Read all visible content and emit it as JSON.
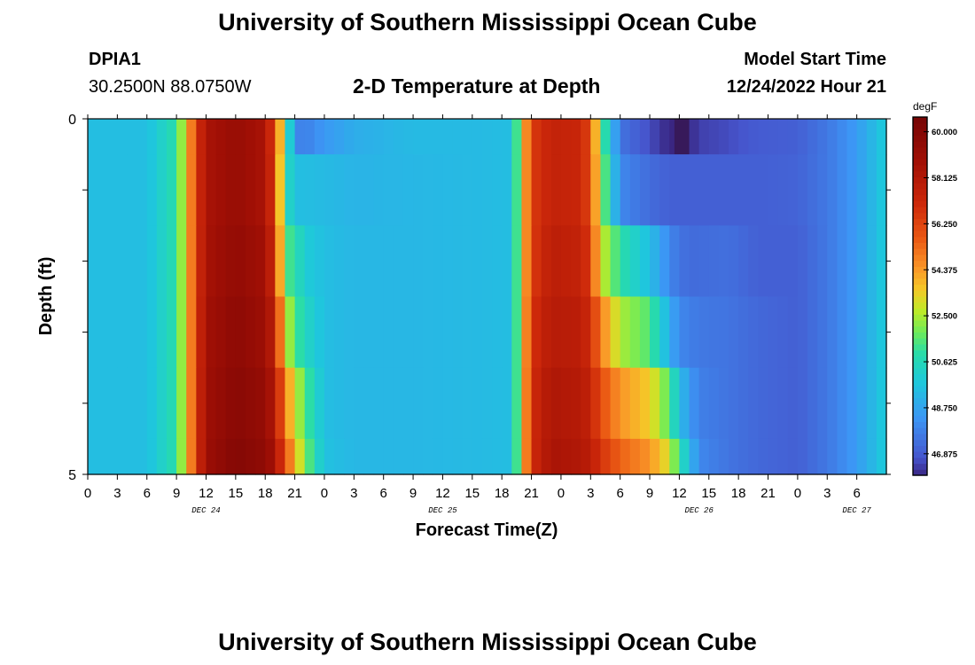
{
  "header": {
    "title": "University of Southern Mississippi Ocean Cube",
    "station_id": "DPIA1",
    "coordinates": "30.2500N  88.0750W",
    "subtitle": "2-D Temperature at Depth",
    "model_start_label": "Model Start Time",
    "model_start_value": "12/24/2022 Hour 21"
  },
  "footer": {
    "title": "University of Southern Mississippi Ocean Cube"
  },
  "chart_data": {
    "type": "heatmap",
    "title": "2-D Temperature at Depth",
    "xlabel": "Forecast Time(Z)",
    "ylabel": "Depth (ft)",
    "colorbar_unit": "degF",
    "colorbar_ticks": [
      "60.000",
      "58.125",
      "56.250",
      "54.375",
      "52.500",
      "50.625",
      "48.750",
      "46.875"
    ],
    "color_range": [
      46.0,
      60.6
    ],
    "x_hours_range": [
      0,
      81
    ],
    "x_tick_labels": [
      "0",
      "3",
      "6",
      "9",
      "12",
      "15",
      "18",
      "21",
      "0",
      "3",
      "6",
      "9",
      "12",
      "15",
      "18",
      "21",
      "0",
      "3",
      "6",
      "9",
      "12",
      "15",
      "18",
      "21",
      "0",
      "3",
      "6"
    ],
    "day_labels": [
      {
        "label": "DEC 24",
        "hour": 12
      },
      {
        "label": "DEC 25",
        "hour": 36
      },
      {
        "label": "DEC 26",
        "hour": 62
      },
      {
        "label": "DEC 27",
        "hour": 78
      }
    ],
    "y_tick_labels": [
      "0",
      "5"
    ],
    "y_range": [
      0,
      5
    ],
    "depth_bands": [
      "0-0.5 ft",
      "0.5-1.5 ft",
      "1.5-2.5 ft",
      "2.5-3.5 ft",
      "3.5-4.5 ft",
      "4.5-5 ft"
    ],
    "time_anchors_hours": [
      0,
      6,
      9,
      10,
      11,
      12,
      15,
      18,
      19,
      20,
      21,
      22,
      24,
      27,
      33,
      40,
      43,
      44,
      45,
      47,
      50,
      51,
      52,
      54,
      57,
      59,
      60,
      61,
      62,
      65,
      68,
      72,
      75,
      78,
      81
    ],
    "temperature_anchors_degF": [
      [
        49.5,
        49.5,
        51.0,
        53.5,
        56.5,
        58.5,
        59.2,
        58.5,
        56.0,
        52.0,
        48.0,
        47.8,
        48.4,
        49.0,
        49.4,
        49.4,
        49.5,
        53.0,
        56.5,
        57.5,
        57.3,
        56.0,
        52.0,
        47.5,
        46.6,
        46.0,
        45.8,
        46.0,
        46.4,
        46.6,
        46.9,
        47.0,
        47.6,
        48.5,
        50.0
      ],
      [
        49.5,
        49.5,
        51.0,
        53.5,
        56.5,
        58.5,
        59.2,
        58.5,
        56.3,
        51.0,
        49.5,
        49.5,
        49.4,
        49.2,
        49.3,
        49.4,
        49.5,
        53.0,
        56.5,
        57.5,
        57.3,
        56.0,
        52.5,
        48.0,
        47.3,
        47.0,
        47.0,
        47.0,
        47.0,
        47.0,
        47.0,
        47.1,
        47.6,
        48.5,
        50.0
      ],
      [
        49.5,
        49.5,
        51.0,
        53.5,
        56.5,
        58.6,
        59.4,
        58.8,
        56.8,
        51.5,
        51.0,
        50.0,
        49.5,
        49.3,
        49.3,
        49.4,
        49.5,
        53.0,
        56.5,
        57.8,
        57.5,
        56.5,
        53.0,
        51.0,
        49.5,
        48.0,
        47.5,
        47.3,
        47.3,
        47.4,
        47.0,
        47.0,
        47.6,
        48.5,
        50.0
      ],
      [
        49.5,
        49.5,
        51.0,
        53.5,
        56.5,
        58.8,
        59.6,
        59.0,
        57.5,
        53.0,
        51.5,
        50.5,
        49.5,
        49.3,
        49.3,
        49.4,
        49.5,
        53.0,
        56.8,
        58.0,
        57.8,
        57.0,
        55.0,
        52.5,
        51.5,
        49.0,
        48.0,
        47.8,
        47.6,
        47.5,
        47.2,
        47.0,
        47.6,
        48.5,
        50.0
      ],
      [
        49.5,
        49.5,
        51.0,
        53.5,
        56.5,
        58.9,
        59.8,
        59.3,
        58.0,
        55.0,
        53.0,
        51.5,
        49.5,
        49.3,
        49.3,
        49.4,
        49.5,
        53.0,
        57.0,
        58.3,
        58.0,
        57.5,
        56.0,
        54.5,
        53.5,
        51.5,
        49.5,
        48.5,
        47.8,
        47.5,
        47.2,
        47.0,
        47.6,
        48.5,
        50.0
      ],
      [
        49.5,
        49.5,
        51.0,
        53.5,
        56.5,
        59.0,
        60.0,
        59.5,
        58.5,
        56.0,
        54.0,
        52.0,
        49.6,
        49.3,
        49.3,
        49.4,
        49.5,
        53.0,
        57.0,
        58.5,
        58.2,
        57.8,
        56.8,
        55.5,
        54.5,
        53.0,
        51.0,
        49.5,
        48.0,
        47.5,
        47.2,
        47.0,
        47.6,
        48.5,
        50.0
      ]
    ],
    "cold_spot": {
      "depth_band": "0-0.5 ft",
      "hours": [
        59.5,
        61
      ],
      "value_degF": 45.8
    }
  }
}
